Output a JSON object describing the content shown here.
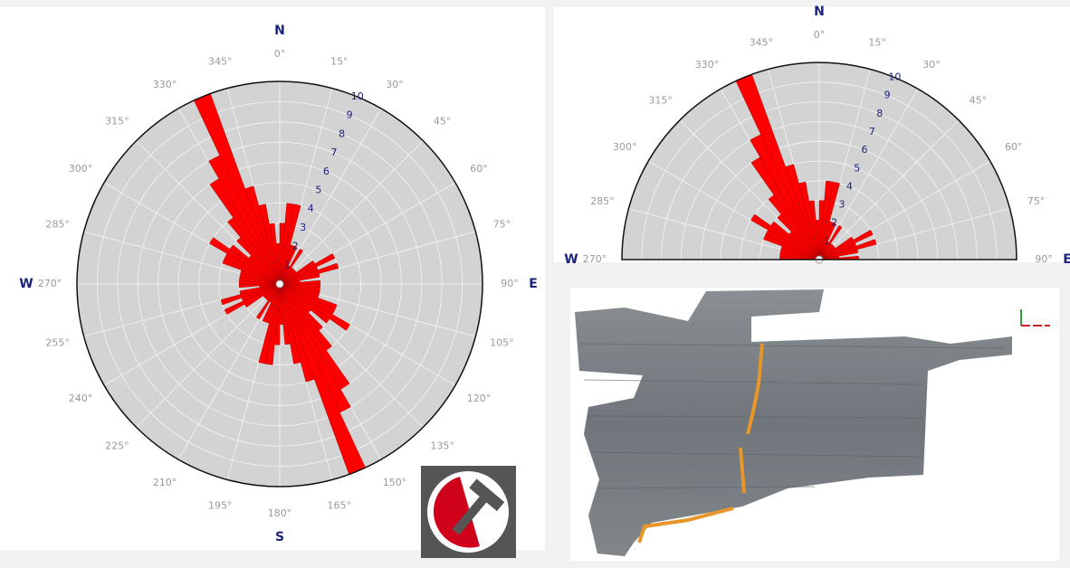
{
  "chart_data": [
    {
      "type": "rose",
      "bidirectional": true,
      "color": "#ff0000",
      "grid": true,
      "thetalim": [
        0,
        360
      ],
      "rlim": [
        0,
        10
      ],
      "rticks": [
        1,
        2,
        3,
        4,
        5,
        6,
        7,
        8,
        9,
        10
      ],
      "x": [
        0,
        5,
        10,
        15,
        20,
        25,
        30,
        35,
        40,
        45,
        50,
        55,
        60,
        65,
        70,
        75,
        80,
        85,
        90,
        95,
        100,
        105,
        110,
        115,
        120,
        125,
        130,
        135,
        140,
        145,
        150,
        155,
        160,
        165,
        170,
        175
      ],
      "values": [
        3,
        4,
        4,
        2,
        2,
        1,
        2,
        1,
        1,
        1,
        1,
        2,
        3,
        2,
        3,
        2,
        1,
        2,
        2,
        2,
        2,
        2,
        3,
        3,
        4,
        3,
        2,
        3,
        4,
        6,
        7,
        10,
        5,
        4,
        3,
        2
      ],
      "thetaticks": [
        {
          "value": 0,
          "label": "0°"
        },
        {
          "value": 15,
          "label": "15°"
        },
        {
          "value": 30,
          "label": "30°"
        },
        {
          "value": 45,
          "label": "45°"
        },
        {
          "value": 60,
          "label": "60°"
        },
        {
          "value": 75,
          "label": "75°"
        },
        {
          "value": 90,
          "label": "90°"
        },
        {
          "value": 105,
          "label": "105°"
        },
        {
          "value": 120,
          "label": "120°"
        },
        {
          "value": 135,
          "label": "135°"
        },
        {
          "value": 150,
          "label": "150°"
        },
        {
          "value": 165,
          "label": "165°"
        },
        {
          "value": 180,
          "label": "180°"
        },
        {
          "value": 195,
          "label": "195°"
        },
        {
          "value": 210,
          "label": "210°"
        },
        {
          "value": 225,
          "label": "225°"
        },
        {
          "value": 240,
          "label": "240°"
        },
        {
          "value": 255,
          "label": "255°"
        },
        {
          "value": 270,
          "label": "270°"
        },
        {
          "value": 285,
          "label": "285°"
        },
        {
          "value": 300,
          "label": "300°"
        },
        {
          "value": 315,
          "label": "315°"
        },
        {
          "value": 330,
          "label": "330°"
        },
        {
          "value": 345,
          "label": "345°"
        }
      ],
      "compass": [
        {
          "value": 0,
          "label": "N"
        },
        {
          "value": 90,
          "label": "E"
        },
        {
          "value": 180,
          "label": "S"
        },
        {
          "value": 270,
          "label": "W"
        }
      ]
    },
    {
      "type": "rose",
      "bidirectional": true,
      "color": "#ff0000",
      "grid": true,
      "thetalim": [
        270,
        90
      ],
      "rlim": [
        0,
        10
      ],
      "rticks": [
        1,
        2,
        3,
        4,
        5,
        6,
        7,
        8,
        9,
        10
      ],
      "x": [
        0,
        5,
        10,
        15,
        20,
        25,
        30,
        35,
        40,
        45,
        50,
        55,
        60,
        65,
        70,
        75,
        80,
        85,
        90,
        95,
        100,
        105,
        110,
        115,
        120,
        125,
        130,
        135,
        140,
        145,
        150,
        155,
        160,
        165,
        170,
        175
      ],
      "values": [
        3,
        4,
        4,
        2,
        2,
        1,
        2,
        1,
        1,
        1,
        1,
        2,
        3,
        2,
        3,
        2,
        1,
        2,
        2,
        2,
        2,
        2,
        3,
        3,
        4,
        3,
        2,
        3,
        4,
        6,
        7,
        10,
        5,
        4,
        3,
        2
      ],
      "thetaticks": [
        {
          "value": 270,
          "label": "270°"
        },
        {
          "value": 285,
          "label": "285°"
        },
        {
          "value": 300,
          "label": "300°"
        },
        {
          "value": 315,
          "label": "315°"
        },
        {
          "value": 330,
          "label": "330°"
        },
        {
          "value": 345,
          "label": "345°"
        },
        {
          "value": 0,
          "label": "0°"
        },
        {
          "value": 15,
          "label": "15°"
        },
        {
          "value": 30,
          "label": "30°"
        },
        {
          "value": 45,
          "label": "45°"
        },
        {
          "value": 60,
          "label": "60°"
        },
        {
          "value": 75,
          "label": "75°"
        },
        {
          "value": 90,
          "label": "90°"
        }
      ],
      "compass": [
        {
          "value": 0,
          "label": "N"
        },
        {
          "value": 90,
          "label": "E"
        },
        {
          "value": 270,
          "label": "W"
        }
      ]
    }
  ]
}
